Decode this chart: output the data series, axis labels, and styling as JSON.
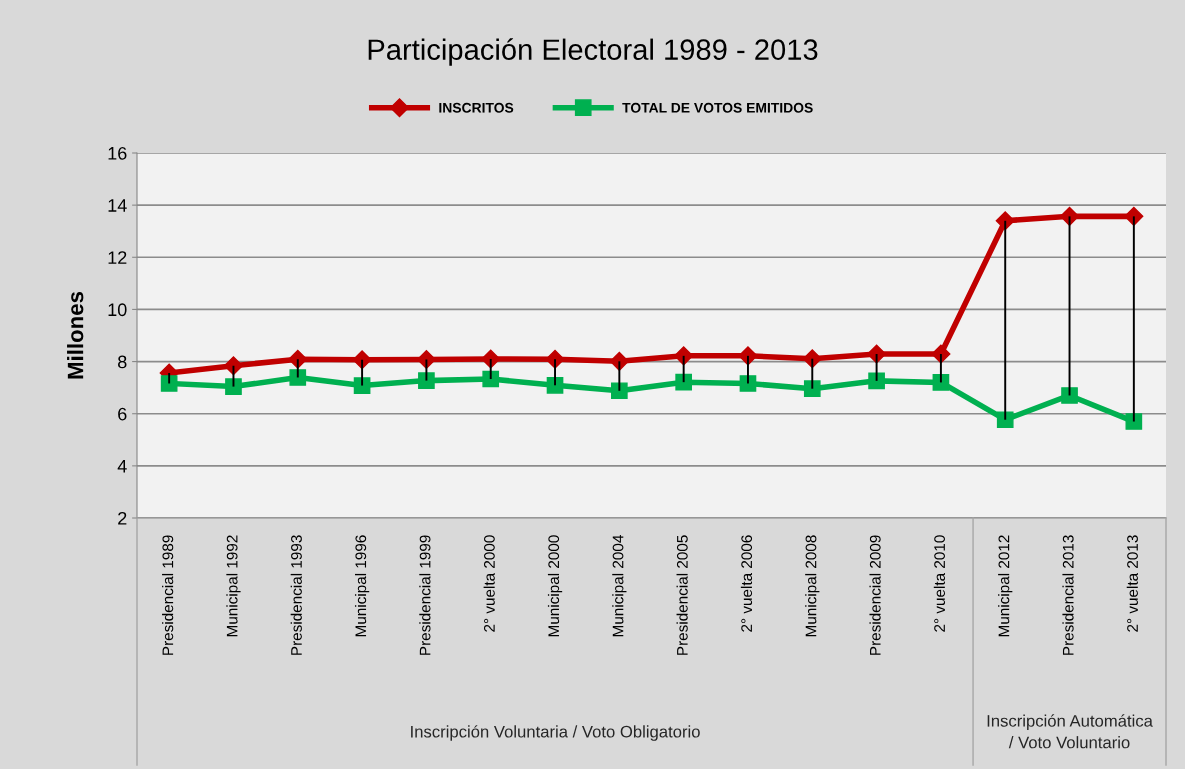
{
  "chart_data": {
    "type": "line",
    "title": "Participación Electoral 1989 - 2013",
    "ylabel": "Millones",
    "categories": [
      "Presidencial 1989",
      "Municipal 1992",
      "Presidencial 1993",
      "Municipal 1996",
      "Presidencial 1999",
      "2° vuelta 2000",
      "Municipal 2000",
      "Municipal 2004",
      "Presidencial 2005",
      "2° vuelta 2006",
      "Municipal 2008",
      "Presidencial 2009",
      "2° vuelta 2010",
      "Municipal 2012",
      "Presidencial 2013",
      "2° vuelta 2013"
    ],
    "series": [
      {
        "name": "INSCRITOS",
        "color": "#c00000",
        "marker": "diamond",
        "values": [
          7.56,
          7.84,
          8.09,
          8.07,
          8.08,
          8.1,
          8.09,
          8.01,
          8.22,
          8.22,
          8.11,
          8.29,
          8.29,
          13.4,
          13.57,
          13.57
        ]
      },
      {
        "name": "TOTAL DE VOTOS EMITIDOS",
        "color": "#00b050",
        "marker": "square",
        "values": [
          7.16,
          7.04,
          7.39,
          7.08,
          7.27,
          7.33,
          7.09,
          6.88,
          7.21,
          7.16,
          6.96,
          7.26,
          7.2,
          5.77,
          6.7,
          5.7
        ],
        "errors": [
          [
            7.16,
            7.56
          ],
          [
            7.04,
            7.84
          ],
          [
            7.39,
            8.09
          ],
          [
            7.08,
            8.07
          ],
          [
            7.27,
            8.08
          ],
          [
            7.33,
            8.1
          ],
          [
            7.09,
            8.09
          ],
          [
            6.88,
            8.01
          ],
          [
            7.21,
            8.22
          ],
          [
            7.16,
            8.22
          ],
          [
            6.96,
            8.11
          ],
          [
            7.26,
            8.29
          ],
          [
            7.2,
            8.29
          ],
          [
            5.77,
            13.4
          ],
          [
            6.7,
            13.57
          ],
          [
            5.7,
            13.57
          ]
        ]
      }
    ],
    "ylim": [
      2,
      16
    ],
    "yticks": [
      2,
      4,
      6,
      8,
      10,
      12,
      14,
      16
    ],
    "grid": "y",
    "legend": "top",
    "annotations": [
      "Inscripción Voluntaria / Voto Obligatorio",
      "Inscripción Automática\n/ Voto Voluntario"
    ]
  }
}
